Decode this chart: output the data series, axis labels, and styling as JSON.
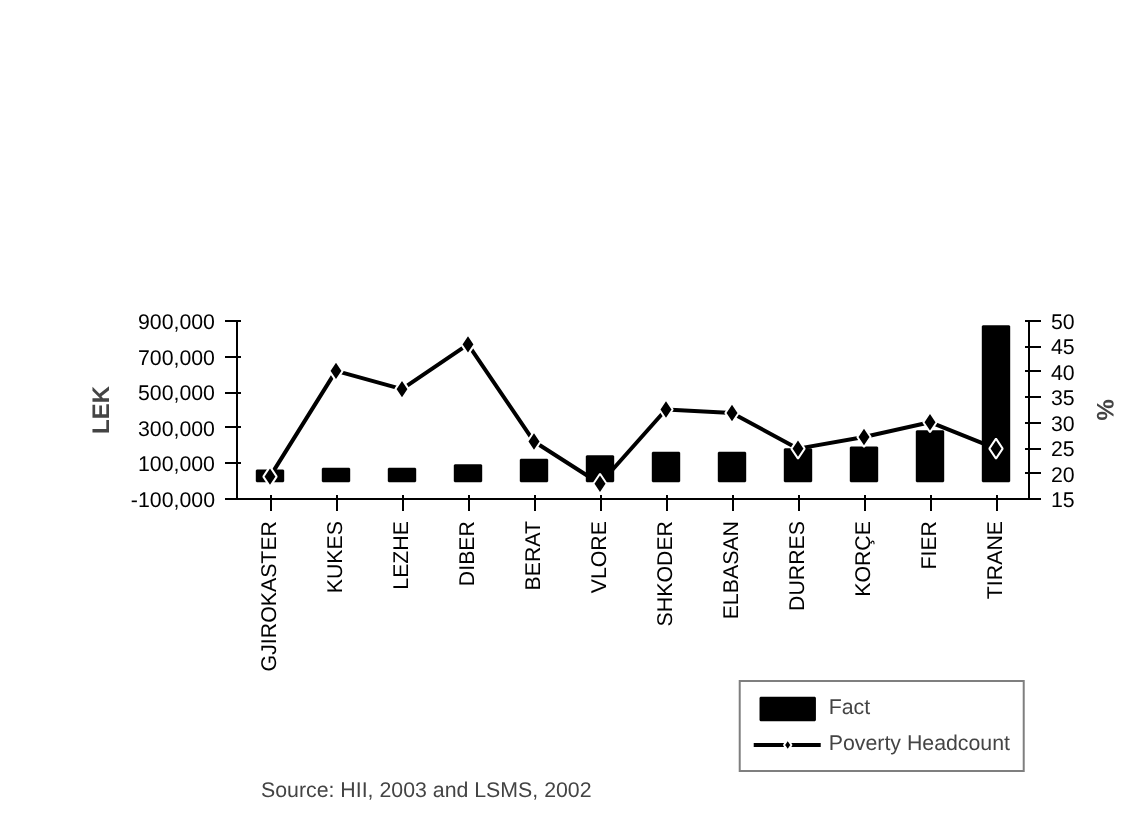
{
  "chart_data": {
    "type": "bar",
    "categories": [
      "GJIROKASTER",
      "KUKES",
      "LEZHE",
      "DIBER",
      "BERAT",
      "VLORE",
      "SHKODER",
      "ELBASAN",
      "DURRES",
      "KORÇE",
      "FIER",
      "TIRANE"
    ],
    "series": [
      {
        "name": "Fact",
        "color": "#000000",
        "values": [
          60000,
          70000,
          70000,
          90000,
          120000,
          140000,
          160000,
          160000,
          180000,
          190000,
          280000,
          870000
        ]
      },
      {
        "name": "Poverty Headcount",
        "type": "line",
        "axis": "y2",
        "color": "#000000",
        "marker": "diamond",
        "values": [
          19.4,
          40.2,
          36.6,
          45.4,
          26.3,
          18.0,
          32.6,
          31.9,
          24.9,
          27.2,
          30.1,
          24.9
        ]
      }
    ],
    "ylabel": "LEK",
    "y2label": "%",
    "ylim": [
      -100000,
      900000
    ],
    "yticks": [
      {
        "value": -100000,
        "label": "-100,000"
      },
      {
        "value": 100000,
        "label": "100,000"
      },
      {
        "value": 300000,
        "label": "300,000"
      },
      {
        "value": 500000,
        "label": "500,000"
      },
      {
        "value": 700000,
        "label": "700,000"
      },
      {
        "value": 900000,
        "label": "900,000"
      }
    ],
    "y2lim": [
      15,
      50
    ],
    "y2ticks": [
      15,
      20,
      25,
      30,
      35,
      40,
      45,
      50
    ],
    "legend": "bottom right",
    "grid": false,
    "annotations": [
      "Source: HII, 2003 and LSMS, 2002"
    ]
  }
}
